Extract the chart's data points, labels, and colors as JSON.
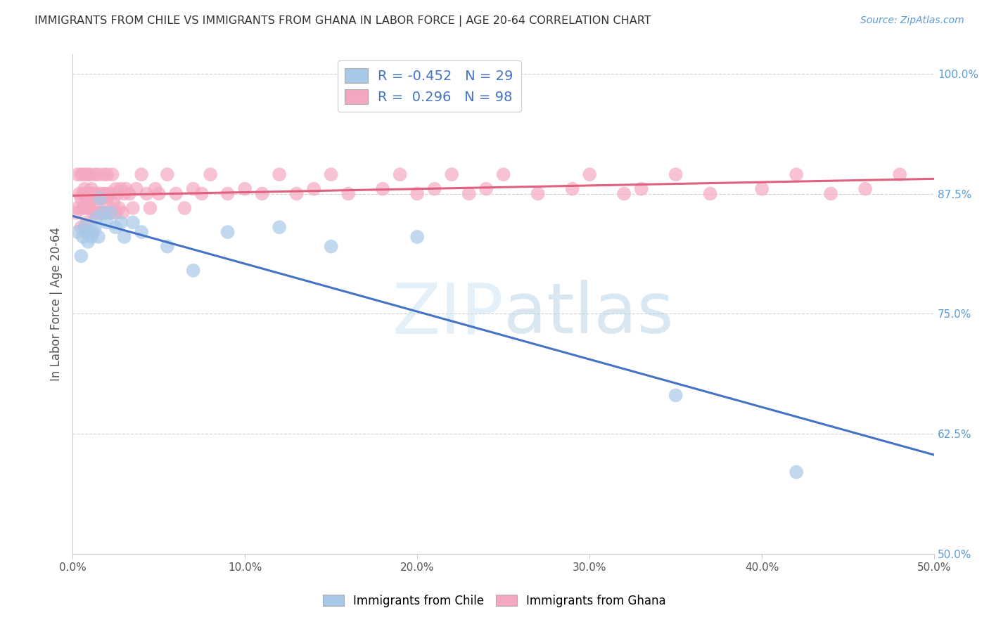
{
  "title": "IMMIGRANTS FROM CHILE VS IMMIGRANTS FROM GHANA IN LABOR FORCE | AGE 20-64 CORRELATION CHART",
  "source": "Source: ZipAtlas.com",
  "xlabel_ticks": [
    "0.0%",
    "10.0%",
    "20.0%",
    "30.0%",
    "40.0%",
    "50.0%"
  ],
  "xlabel_vals": [
    0.0,
    0.1,
    0.2,
    0.3,
    0.4,
    0.5
  ],
  "ylabel_ticks": [
    "100.0%",
    "87.5%",
    "75.0%",
    "62.5%",
    "50.0%"
  ],
  "ylabel_vals": [
    1.0,
    0.875,
    0.75,
    0.625,
    0.5
  ],
  "ylabel_label": "In Labor Force | Age 20-64",
  "xlim": [
    0.0,
    0.5
  ],
  "ylim": [
    0.5,
    1.02
  ],
  "chile_color": "#a8c8e8",
  "ghana_color": "#f4a8c0",
  "chile_R": -0.452,
  "chile_N": 29,
  "ghana_R": 0.296,
  "ghana_N": 98,
  "chile_line_color": "#4472c4",
  "ghana_line_color": "#e0607e",
  "watermark_zip": "ZIP",
  "watermark_atlas": "atlas",
  "legend_chile": "Immigrants from Chile",
  "legend_ghana": "Immigrants from Ghana",
  "chile_scatter_x": [
    0.003,
    0.005,
    0.006,
    0.007,
    0.008,
    0.009,
    0.01,
    0.011,
    0.012,
    0.013,
    0.014,
    0.015,
    0.016,
    0.018,
    0.02,
    0.022,
    0.025,
    0.028,
    0.03,
    0.035,
    0.04,
    0.055,
    0.07,
    0.09,
    0.12,
    0.15,
    0.2,
    0.35,
    0.42
  ],
  "chile_scatter_y": [
    0.835,
    0.81,
    0.83,
    0.84,
    0.835,
    0.825,
    0.835,
    0.83,
    0.835,
    0.84,
    0.85,
    0.83,
    0.87,
    0.855,
    0.845,
    0.855,
    0.84,
    0.845,
    0.83,
    0.845,
    0.835,
    0.82,
    0.795,
    0.835,
    0.84,
    0.82,
    0.83,
    0.665,
    0.585
  ],
  "ghana_scatter_x": [
    0.002,
    0.003,
    0.003,
    0.004,
    0.005,
    0.005,
    0.005,
    0.006,
    0.006,
    0.006,
    0.007,
    0.007,
    0.007,
    0.008,
    0.008,
    0.008,
    0.009,
    0.009,
    0.009,
    0.01,
    0.01,
    0.01,
    0.011,
    0.011,
    0.012,
    0.012,
    0.012,
    0.013,
    0.013,
    0.014,
    0.014,
    0.015,
    0.015,
    0.016,
    0.016,
    0.017,
    0.017,
    0.018,
    0.018,
    0.019,
    0.019,
    0.02,
    0.02,
    0.021,
    0.022,
    0.022,
    0.023,
    0.024,
    0.025,
    0.025,
    0.026,
    0.027,
    0.028,
    0.029,
    0.03,
    0.031,
    0.033,
    0.035,
    0.037,
    0.04,
    0.043,
    0.045,
    0.048,
    0.05,
    0.055,
    0.06,
    0.065,
    0.07,
    0.075,
    0.08,
    0.09,
    0.1,
    0.11,
    0.12,
    0.13,
    0.14,
    0.15,
    0.16,
    0.18,
    0.19,
    0.2,
    0.21,
    0.22,
    0.23,
    0.24,
    0.25,
    0.27,
    0.29,
    0.3,
    0.32,
    0.33,
    0.35,
    0.37,
    0.4,
    0.42,
    0.44,
    0.46,
    0.48
  ],
  "ghana_scatter_y": [
    0.855,
    0.895,
    0.86,
    0.875,
    0.895,
    0.87,
    0.84,
    0.875,
    0.895,
    0.86,
    0.88,
    0.86,
    0.875,
    0.895,
    0.87,
    0.845,
    0.875,
    0.895,
    0.86,
    0.875,
    0.895,
    0.86,
    0.87,
    0.88,
    0.875,
    0.855,
    0.875,
    0.86,
    0.895,
    0.875,
    0.855,
    0.87,
    0.895,
    0.855,
    0.875,
    0.87,
    0.855,
    0.875,
    0.895,
    0.855,
    0.875,
    0.865,
    0.895,
    0.875,
    0.855,
    0.875,
    0.895,
    0.865,
    0.855,
    0.88,
    0.875,
    0.86,
    0.88,
    0.855,
    0.875,
    0.88,
    0.875,
    0.86,
    0.88,
    0.895,
    0.875,
    0.86,
    0.88,
    0.875,
    0.895,
    0.875,
    0.86,
    0.88,
    0.875,
    0.895,
    0.875,
    0.88,
    0.875,
    0.895,
    0.875,
    0.88,
    0.895,
    0.875,
    0.88,
    0.895,
    0.875,
    0.88,
    0.895,
    0.875,
    0.88,
    0.895,
    0.875,
    0.88,
    0.895,
    0.875,
    0.88,
    0.895,
    0.875,
    0.88,
    0.895,
    0.875,
    0.88,
    0.895
  ]
}
